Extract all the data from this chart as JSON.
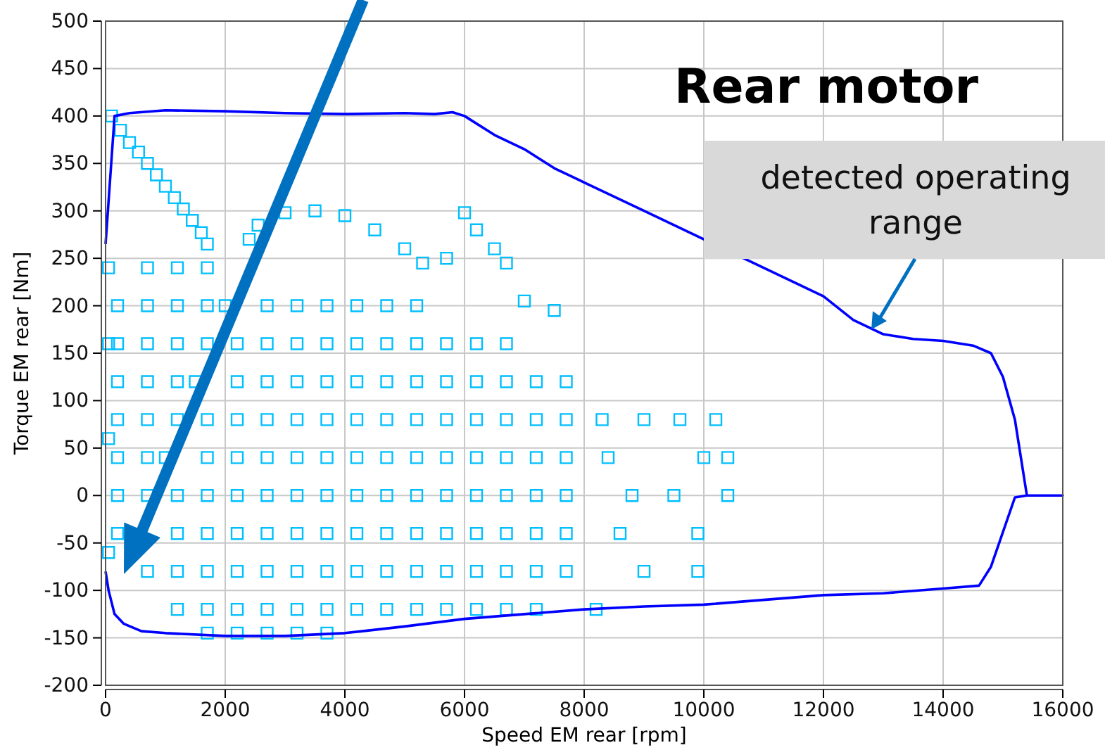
{
  "chart_data": {
    "type": "scatter",
    "title": "Rear motor",
    "xlabel": "Speed EM rear [rpm]",
    "ylabel": "Torque EM rear [Nm]",
    "xlim": [
      0,
      16000
    ],
    "xticks": [
      0,
      2000,
      4000,
      6000,
      8000,
      10000,
      12000,
      14000,
      16000
    ],
    "ylim": [
      -200,
      500
    ],
    "yticks": [
      -200,
      -150,
      -100,
      -50,
      0,
      50,
      100,
      150,
      200,
      250,
      300,
      350,
      400,
      450,
      500
    ],
    "grid": true,
    "annotations": [
      {
        "text": "detected operating range",
        "x": 12800,
        "y": 175
      }
    ],
    "series": [
      {
        "marker": "square",
        "color": "#00bfff",
        "x": [
          100,
          250,
          400,
          550,
          700,
          850,
          1000,
          1150,
          1300,
          1450,
          1600,
          1700,
          2400,
          2550,
          3000,
          3500,
          4000,
          4500,
          5000,
          5300,
          5700,
          6000,
          6200,
          6500,
          6700,
          7000,
          7500,
          50,
          50,
          50,
          50,
          700,
          1200,
          1700,
          200,
          700,
          1200,
          1700,
          2000,
          2700,
          3200,
          3700,
          4200,
          4700,
          5200,
          200,
          700,
          1200,
          1700,
          2200,
          2700,
          3200,
          3700,
          4200,
          4700,
          5200,
          5700,
          6200,
          6700,
          200,
          700,
          1200,
          1500,
          2200,
          2700,
          3200,
          3700,
          4200,
          4700,
          5200,
          5700,
          6200,
          6700,
          7200,
          7700,
          200,
          700,
          1200,
          1700,
          2200,
          2700,
          3200,
          3700,
          4200,
          4700,
          5200,
          5700,
          6200,
          6700,
          7200,
          7700,
          8300,
          9000,
          9600,
          10200,
          200,
          700,
          1000,
          1700,
          2200,
          2700,
          3200,
          3700,
          4200,
          4700,
          5200,
          5700,
          6200,
          6700,
          7200,
          7700,
          8400,
          10000,
          10400,
          200,
          700,
          1200,
          1700,
          2200,
          2700,
          3200,
          3700,
          4200,
          4700,
          5200,
          5700,
          6200,
          6700,
          7200,
          7700,
          8800,
          9500,
          10400,
          200,
          1200,
          1700,
          2200,
          2700,
          3200,
          3700,
          4200,
          4700,
          5200,
          5700,
          6200,
          6700,
          7200,
          7700,
          8600,
          9900,
          700,
          1200,
          1700,
          2200,
          2700,
          3200,
          3700,
          4200,
          4700,
          5200,
          5700,
          6200,
          6700,
          7200,
          7700,
          9000,
          9900,
          1200,
          1700,
          2200,
          2700,
          3200,
          3700,
          4200,
          4700,
          5200,
          5700,
          6200,
          6700,
          7200,
          8200,
          1700,
          2200,
          2700,
          3200,
          3700
        ],
        "values": [
          400,
          385,
          372,
          362,
          350,
          338,
          326,
          314,
          302,
          290,
          277,
          265,
          270,
          285,
          298,
          300,
          295,
          280,
          260,
          245,
          250,
          298,
          280,
          260,
          245,
          205,
          195,
          240,
          160,
          60,
          -60,
          240,
          240,
          240,
          200,
          200,
          200,
          200,
          200,
          200,
          200,
          200,
          200,
          200,
          200,
          160,
          160,
          160,
          160,
          160,
          160,
          160,
          160,
          160,
          160,
          160,
          160,
          160,
          160,
          120,
          120,
          120,
          120,
          120,
          120,
          120,
          120,
          120,
          120,
          120,
          120,
          120,
          120,
          120,
          120,
          80,
          80,
          80,
          80,
          80,
          80,
          80,
          80,
          80,
          80,
          80,
          80,
          80,
          80,
          80,
          80,
          80,
          80,
          80,
          80,
          40,
          40,
          40,
          40,
          40,
          40,
          40,
          40,
          40,
          40,
          40,
          40,
          40,
          40,
          40,
          40,
          40,
          40,
          40,
          0,
          0,
          0,
          0,
          0,
          0,
          0,
          0,
          0,
          0,
          0,
          0,
          0,
          0,
          0,
          0,
          0,
          0,
          0,
          -40,
          -40,
          -40,
          -40,
          -40,
          -40,
          -40,
          -40,
          -40,
          -40,
          -40,
          -40,
          -40,
          -40,
          -40,
          -40,
          -40,
          -80,
          -80,
          -80,
          -80,
          -80,
          -80,
          -80,
          -80,
          -80,
          -80,
          -80,
          -80,
          -80,
          -80,
          -80,
          -80,
          -80,
          -120,
          -120,
          -120,
          -120,
          -120,
          -120,
          -120,
          -120,
          -120,
          -120,
          -120,
          -120,
          -120,
          -120,
          -145,
          -145,
          -145,
          -145,
          -145
        ]
      },
      {
        "type": "line",
        "color": "#0000ff",
        "marker": "none",
        "x": [
          0,
          150,
          400,
          1000,
          2000,
          3000,
          4000,
          5000,
          5500,
          5800,
          6000,
          6500,
          7000,
          7500,
          8000,
          9000,
          10000,
          11000,
          12000,
          12500,
          13000,
          13500,
          14000,
          14500,
          14800,
          15000,
          15200,
          15400,
          16000,
          15400,
          15200,
          14800,
          14600,
          14000,
          13000,
          12000,
          11000,
          10000,
          9000,
          8000,
          7000,
          6000,
          5000,
          4000,
          3000,
          2000,
          1000,
          600,
          300,
          150,
          50,
          0
        ],
        "values": [
          265,
          400,
          403,
          406,
          405,
          403,
          402,
          403,
          402,
          404,
          400,
          380,
          365,
          345,
          330,
          300,
          270,
          240,
          210,
          185,
          170,
          165,
          163,
          158,
          150,
          125,
          80,
          0,
          0,
          0,
          -2,
          -75,
          -95,
          -98,
          -103,
          -105,
          -110,
          -115,
          -117,
          -120,
          -125,
          -130,
          -138,
          -145,
          -148,
          -148,
          -145,
          -143,
          -135,
          -125,
          -100,
          -80
        ]
      }
    ]
  }
}
